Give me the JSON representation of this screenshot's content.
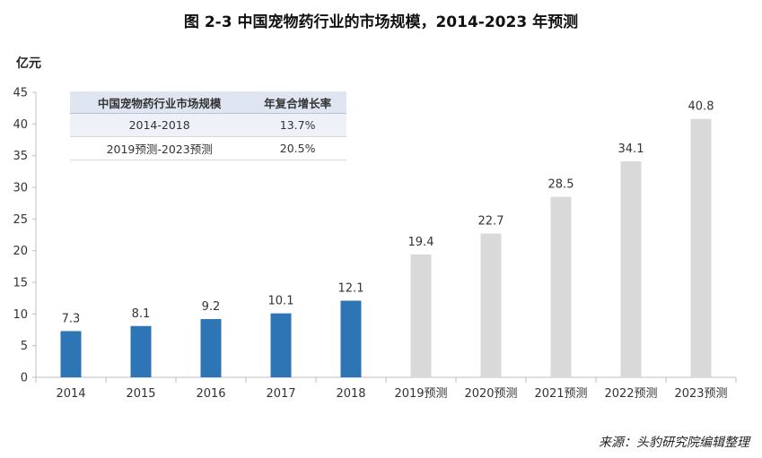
{
  "title": "图 2-3 中国宠物药行业的市场规模，2014-2023 年预测",
  "unit_label": "亿元",
  "source": "来源：头豹研究院编辑整理",
  "table": {
    "headers": [
      "中国宠物药行业市场规模",
      "年复合增长率"
    ],
    "rows": [
      [
        "2014-2018",
        "13.7%"
      ],
      [
        "2019预测-2023预测",
        "20.5%"
      ]
    ]
  },
  "chart_data": {
    "type": "bar",
    "title": "图 2-3 中国宠物药行业的市场规模，2014-2023 年预测",
    "ylabel": "亿元",
    "xlabel": "",
    "categories": [
      "2014",
      "2015",
      "2016",
      "2017",
      "2018",
      "2019预测",
      "2020预测",
      "2021预测",
      "2022预测",
      "2023预测"
    ],
    "values": [
      7.3,
      8.1,
      9.2,
      10.1,
      12.1,
      19.4,
      22.7,
      28.5,
      34.1,
      40.8
    ],
    "data_labels": [
      "7.3",
      "8.1",
      "9.2",
      "10.1",
      "12.1",
      "19.4",
      "22.7",
      "28.5",
      "34.1",
      "40.8"
    ],
    "bar_colors": [
      "#2e75b6",
      "#2e75b6",
      "#2e75b6",
      "#2e75b6",
      "#2e75b6",
      "#d9d9d9",
      "#d9d9d9",
      "#d9d9d9",
      "#d9d9d9",
      "#d9d9d9"
    ],
    "ylim": [
      0,
      45
    ],
    "yticks": [
      0,
      5,
      10,
      15,
      20,
      25,
      30,
      35,
      40,
      45
    ],
    "grid": false,
    "legend": "none"
  }
}
